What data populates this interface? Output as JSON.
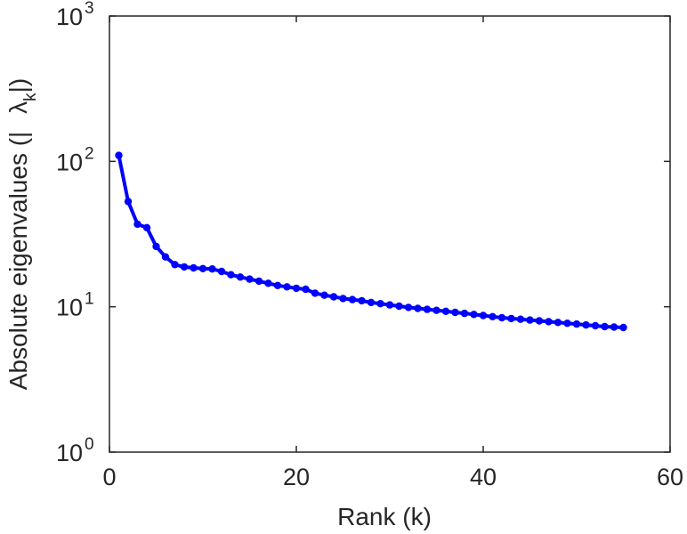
{
  "chart_data": {
    "type": "line",
    "xlabel": "Rank (k)",
    "ylabel": {
      "prefix": "Absolute eigenvalues (|",
      "symbol": "λ",
      "subscript": "k",
      "suffix": "|)"
    },
    "xlim": [
      0,
      60
    ],
    "ylim": [
      1,
      1000
    ],
    "yscale": "log",
    "grid": false,
    "x_ticks": [
      {
        "value": 0,
        "label": "0"
      },
      {
        "value": 20,
        "label": "20"
      },
      {
        "value": 40,
        "label": "40"
      },
      {
        "value": 60,
        "label": "60"
      }
    ],
    "y_ticks": [
      {
        "value": 1,
        "base": "10",
        "exp": "0"
      },
      {
        "value": 10,
        "base": "10",
        "exp": "1"
      },
      {
        "value": 100,
        "base": "10",
        "exp": "2"
      },
      {
        "value": 1000,
        "base": "10",
        "exp": "3"
      }
    ],
    "series": [
      {
        "color": "#0000ff",
        "x": [
          1,
          2,
          3,
          4,
          5,
          6,
          7,
          8,
          9,
          10,
          11,
          12,
          13,
          14,
          15,
          16,
          17,
          18,
          19,
          20,
          21,
          22,
          23,
          24,
          25,
          26,
          27,
          28,
          29,
          30,
          31,
          32,
          33,
          34,
          35,
          36,
          37,
          38,
          39,
          40,
          41,
          42,
          43,
          44,
          45,
          46,
          47,
          48,
          49,
          50,
          51,
          52,
          53,
          54,
          55
        ],
        "y": [
          110,
          53,
          37,
          35,
          26,
          22,
          19.5,
          18.8,
          18.5,
          18.3,
          18.2,
          17.5,
          16.6,
          16,
          15.5,
          15,
          14.5,
          14,
          13.7,
          13.4,
          13.2,
          12.4,
          12,
          11.7,
          11.4,
          11.2,
          11,
          10.7,
          10.5,
          10.3,
          10.1,
          9.9,
          9.75,
          9.6,
          9.45,
          9.3,
          9.15,
          9,
          8.85,
          8.7,
          8.55,
          8.4,
          8.3,
          8.2,
          8.1,
          8,
          7.9,
          7.8,
          7.7,
          7.6,
          7.5,
          7.4,
          7.3,
          7.25,
          7.2
        ]
      }
    ]
  }
}
